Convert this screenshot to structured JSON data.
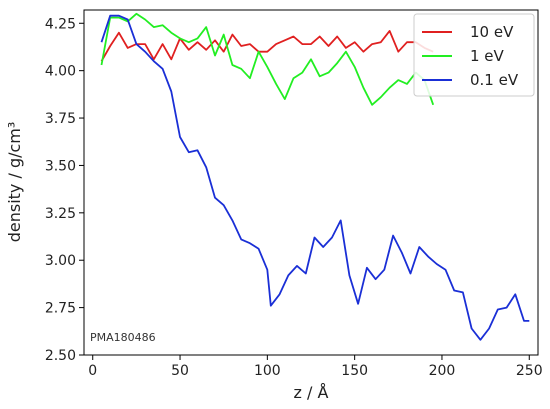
{
  "chart_data": {
    "type": "line",
    "xlabel": "z / Å",
    "ylabel": "density / g/cm³",
    "xlim": [
      -5,
      255
    ],
    "ylim": [
      2.5,
      4.32
    ],
    "xticks": [
      0,
      50,
      100,
      150,
      200,
      250
    ],
    "yticks": [
      2.5,
      2.75,
      3.0,
      3.25,
      3.5,
      3.75,
      4.0,
      4.25
    ],
    "ytick_labels": [
      "2.50",
      "2.75",
      "3.00",
      "3.25",
      "3.50",
      "3.75",
      "4.00",
      "4.25"
    ],
    "grid": false,
    "legend_position": "top-right",
    "annotation": "PMA180486",
    "series": [
      {
        "name": "10 eV",
        "color": "#e02020",
        "x": [
          5,
          10,
          15,
          20,
          25,
          30,
          35,
          40,
          45,
          50,
          55,
          60,
          65,
          70,
          75,
          80,
          85,
          90,
          95,
          100,
          105,
          110,
          115,
          120,
          125,
          130,
          135,
          140,
          145,
          150,
          155,
          160,
          165,
          170,
          175,
          180,
          185,
          190,
          195
        ],
        "values": [
          4.05,
          4.13,
          4.2,
          4.12,
          4.14,
          4.14,
          4.06,
          4.14,
          4.06,
          4.17,
          4.11,
          4.15,
          4.11,
          4.16,
          4.1,
          4.19,
          4.13,
          4.14,
          4.1,
          4.1,
          4.14,
          4.16,
          4.18,
          4.14,
          4.14,
          4.18,
          4.13,
          4.18,
          4.12,
          4.15,
          4.1,
          4.14,
          4.15,
          4.21,
          4.1,
          4.15,
          4.15,
          4.12,
          4.1
        ]
      },
      {
        "name": "1 eV",
        "color": "#22ee22",
        "x": [
          5,
          10,
          15,
          20,
          25,
          30,
          35,
          40,
          45,
          50,
          55,
          60,
          65,
          70,
          75,
          80,
          85,
          90,
          95,
          100,
          105,
          110,
          115,
          120,
          125,
          130,
          135,
          140,
          145,
          150,
          155,
          160,
          165,
          170,
          175,
          180,
          185,
          190,
          195
        ],
        "values": [
          4.03,
          4.28,
          4.28,
          4.26,
          4.3,
          4.27,
          4.23,
          4.24,
          4.2,
          4.17,
          4.15,
          4.17,
          4.23,
          4.08,
          4.19,
          4.03,
          4.01,
          3.96,
          4.1,
          4.02,
          3.93,
          3.85,
          3.96,
          3.99,
          4.06,
          3.97,
          3.99,
          4.04,
          4.1,
          4.02,
          3.91,
          3.82,
          3.86,
          3.91,
          3.95,
          3.93,
          3.99,
          3.95,
          3.82
        ]
      },
      {
        "name": "0.1 eV",
        "color": "#1a2fd6",
        "x": [
          5,
          10,
          15,
          20,
          25,
          30,
          35,
          40,
          45,
          50,
          55,
          60,
          65,
          70,
          75,
          80,
          85,
          90,
          95,
          100,
          102,
          107,
          112,
          117,
          122,
          127,
          132,
          137,
          142,
          147,
          152,
          157,
          162,
          167,
          172,
          177,
          182,
          187,
          192,
          197,
          202,
          207,
          212,
          217,
          222,
          227,
          232,
          237,
          242,
          247,
          250
        ],
        "values": [
          4.15,
          4.29,
          4.29,
          4.27,
          4.14,
          4.1,
          4.05,
          4.01,
          3.89,
          3.65,
          3.57,
          3.58,
          3.49,
          3.33,
          3.29,
          3.21,
          3.11,
          3.09,
          3.06,
          2.95,
          2.76,
          2.82,
          2.92,
          2.97,
          2.93,
          3.12,
          3.07,
          3.12,
          3.21,
          2.92,
          2.77,
          2.96,
          2.9,
          2.95,
          3.13,
          3.04,
          2.93,
          3.07,
          3.02,
          2.98,
          2.95,
          2.84,
          2.83,
          2.64,
          2.58,
          2.64,
          2.74,
          2.75,
          2.82,
          2.68,
          2.68
        ]
      }
    ]
  }
}
